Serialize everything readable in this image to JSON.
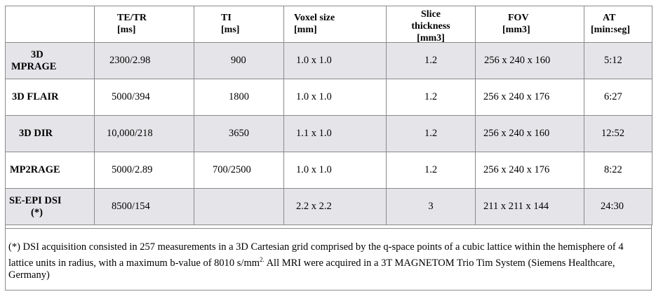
{
  "headers": [
    {
      "line1": "",
      "line2": ""
    },
    {
      "line1": "TE/TR",
      "line2": "[ms]"
    },
    {
      "line1": "TI",
      "line2": "[ms]"
    },
    {
      "line1": "Voxel size",
      "line2": "[mm]"
    },
    {
      "line1": "Slice",
      "line2": "thickness",
      "line3": "[mm3]"
    },
    {
      "line1": "FOV",
      "line2": "[mm3]"
    },
    {
      "line1": "AT",
      "line2": "[min:seg]"
    }
  ],
  "rows": [
    {
      "label1": "3D",
      "label2": "MPRAGE",
      "te_tr": "2300/2.98",
      "ti": "900",
      "voxel": "1.0 x 1.0",
      "slice": "1.2",
      "fov": "256 x 240 x 160",
      "at": "5:12"
    },
    {
      "label1": "3D FLAIR",
      "label2": "",
      "te_tr": "5000/394",
      "ti": "1800",
      "voxel": "1.0 x 1.0",
      "slice": "1.2",
      "fov": "256 x 240 x 176",
      "at": "6:27"
    },
    {
      "label1": "3D DIR",
      "label2": "",
      "te_tr": "10,000/218",
      "ti": "3650",
      "voxel": "1.1 x 1.0",
      "slice": "1.2",
      "fov": "256 x 240 x 160",
      "at": "12:52"
    },
    {
      "label1": "MP2RAGE",
      "label2": "",
      "te_tr": "5000/2.89",
      "ti": "700/2500",
      "voxel": "1.0 x 1.0",
      "slice": "1.2",
      "fov": "256 x 240 x 176",
      "at": "8:22"
    },
    {
      "label1": "SE-EPI DSI",
      "label2": "(*)",
      "te_tr": "8500/154",
      "ti": "",
      "voxel": "2.2 x 2.2",
      "slice": "3",
      "fov": "211 x 211 x 144",
      "at": "24:30"
    }
  ],
  "footnote": {
    "main": "(*) DSI acquisition consisted in 257 measurements in a 3D Cartesian grid comprised by the q-space points of a cubic lattice within the hemisphere of 4 lattice units in radius, with a maximum b-value of 8010 s/mm",
    "sup": "2.",
    "rest": " All MRI were acquired in a 3T MAGNETOM Trio Tim System (Siemens Healthcare, Germany)"
  }
}
